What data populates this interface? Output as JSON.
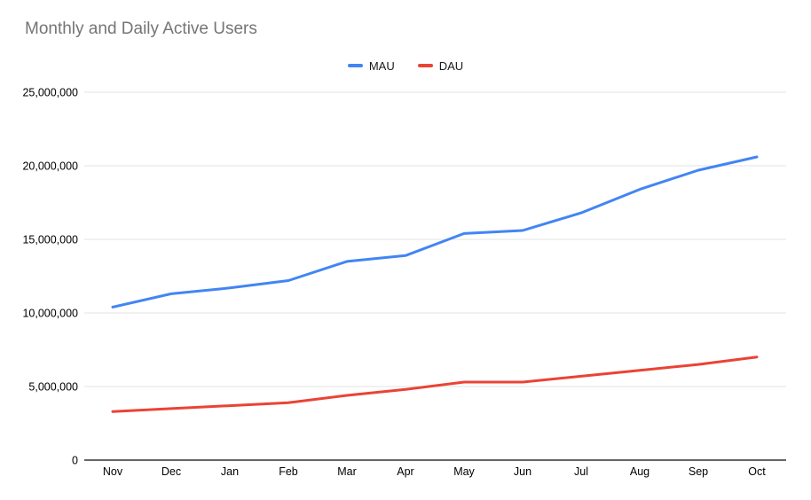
{
  "page": {
    "title": "Monthly and Daily Active Users"
  },
  "chart_data": {
    "type": "line",
    "title": "Monthly and Daily Active Users",
    "categories": [
      "Nov",
      "Dec",
      "Jan",
      "Feb",
      "Mar",
      "Apr",
      "May",
      "Jun",
      "Jul",
      "Aug",
      "Sep",
      "Oct"
    ],
    "series": [
      {
        "name": "MAU",
        "color": "#4285F4",
        "values": [
          10400000,
          11300000,
          11700000,
          12200000,
          13500000,
          13900000,
          15400000,
          15600000,
          16800000,
          18400000,
          19700000,
          20600000
        ]
      },
      {
        "name": "DAU",
        "color": "#EA4335",
        "values": [
          3300000,
          3500000,
          3700000,
          3900000,
          4400000,
          4800000,
          5300000,
          5300000,
          5700000,
          6100000,
          6500000,
          7000000
        ]
      }
    ],
    "xlabel": "",
    "ylabel": "",
    "ylim": [
      0,
      25000000
    ],
    "y_tick_interval": 5000000,
    "y_tick_labels": [
      "0",
      "5,000,000",
      "10,000,000",
      "15,000,000",
      "20,000,000",
      "25,000,000"
    ],
    "grid": true,
    "legend_position": "top-center",
    "colors": {
      "grid": "#e3e3e3",
      "axis": "#333333",
      "tick_text": "#000000",
      "title_text": "#757575"
    }
  }
}
